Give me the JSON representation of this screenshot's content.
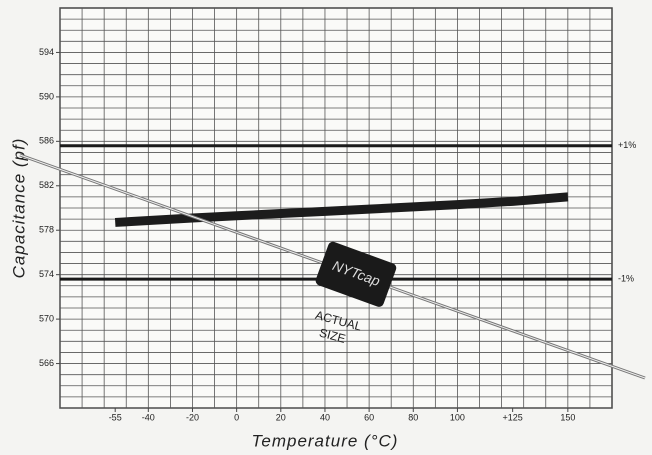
{
  "chart_data": {
    "type": "line",
    "x_label": "Temperature (°C)",
    "y_label": "Capacitance (pf)",
    "x": [
      -55,
      -20,
      0,
      20,
      40,
      60,
      80,
      100,
      125,
      150
    ],
    "series": [
      {
        "color": "#1c1c1c",
        "values": [
          578.7,
          579.1,
          579.3,
          579.5,
          579.7,
          579.9,
          580.1,
          580.3,
          580.6,
          581.0
        ]
      }
    ],
    "xlim": [
      -80,
      170
    ],
    "ylim": [
      562,
      598
    ],
    "xticks": [
      -55,
      -40,
      -20,
      0,
      20,
      40,
      60,
      80,
      100,
      {
        "value": 125,
        "label": "+125"
      },
      150
    ],
    "yticks": [
      566,
      570,
      574,
      578,
      582,
      586,
      590,
      594
    ],
    "reference_lines": [
      {
        "value": 585.6,
        "label": "+1%"
      },
      {
        "value": 573.6,
        "label": "-1%"
      }
    ],
    "annotations": [
      "NYTcap",
      "ACTUAL",
      "SIZE"
    ],
    "grid": true
  }
}
